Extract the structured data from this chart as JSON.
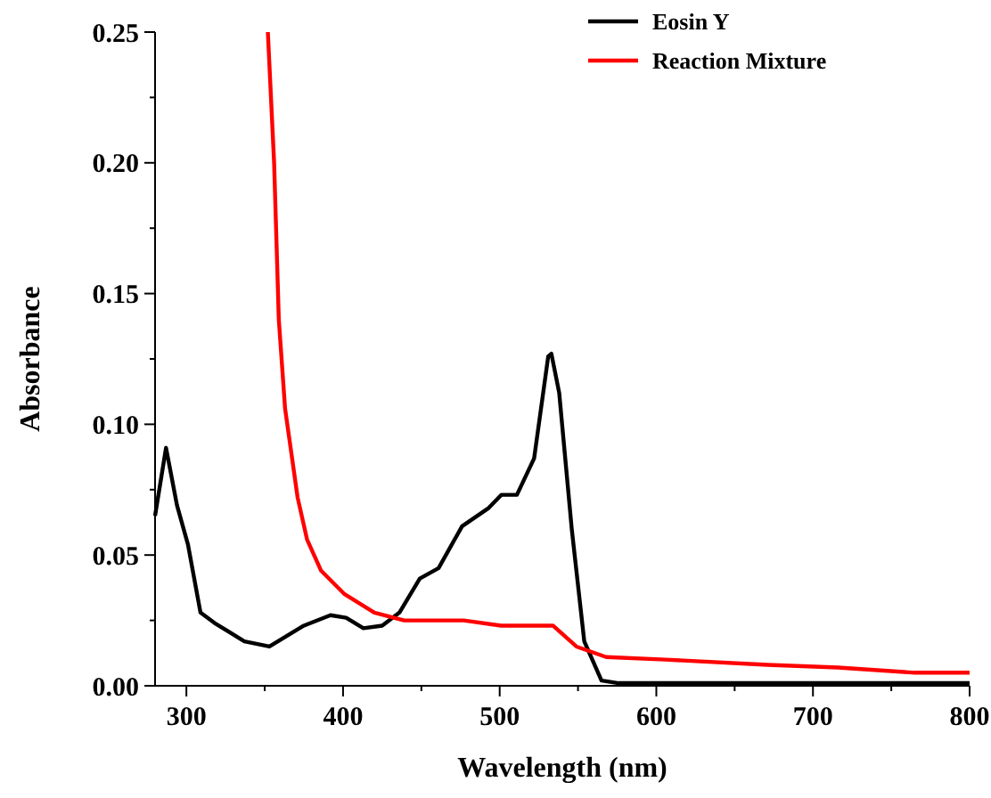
{
  "chart_data": {
    "type": "line",
    "xlabel": "Wavelength (nm)",
    "ylabel": "Absorbance",
    "xlim": [
      280,
      800
    ],
    "ylim": [
      0,
      0.25
    ],
    "xticks": [
      300,
      {
        "value": 350,
        "label": null
      },
      400,
      {
        "value": 450,
        "label": null
      },
      500,
      {
        "value": 550,
        "label": null
      },
      600,
      {
        "value": 650,
        "label": null
      },
      700,
      {
        "value": 750,
        "label": null
      },
      800
    ],
    "yticks": [
      "0.00",
      {
        "value": 0.025,
        "label": null
      },
      {
        "value": 0.05,
        "label": "0.05"
      },
      {
        "value": 0.075,
        "label": null
      },
      {
        "value": 0.1,
        "label": "0.10"
      },
      {
        "value": 0.125,
        "label": null
      },
      {
        "value": 0.15,
        "label": "0.15"
      },
      {
        "value": 0.175,
        "label": null
      },
      {
        "value": 0.2,
        "label": "0.20"
      },
      {
        "value": 0.225,
        "label": null
      },
      {
        "value": 0.25,
        "label": "0.25"
      }
    ],
    "legend": "top right",
    "grid": false,
    "marker": "none",
    "line_style": "solid",
    "series": [
      {
        "name": "Eosin Y",
        "color": "#000000",
        "x": [
          280,
          287,
          294,
          301,
          309,
          318,
          337,
          353,
          375,
          392,
          402,
          413,
          425,
          436,
          449,
          461,
          476,
          493,
          501,
          511,
          522,
          531,
          533,
          538,
          546,
          554,
          565,
          576,
          600,
          700,
          800
        ],
        "values": [
          0.065,
          0.091,
          0.069,
          0.054,
          0.028,
          0.024,
          0.017,
          0.015,
          0.023,
          0.027,
          0.026,
          0.022,
          0.023,
          0.028,
          0.041,
          0.045,
          0.061,
          0.068,
          0.073,
          0.073,
          0.087,
          0.126,
          0.127,
          0.112,
          0.06,
          0.017,
          0.002,
          0.001,
          0.001,
          0.001,
          0.001
        ]
      },
      {
        "name": "Reaction Mixture",
        "color": "#ff0000",
        "x": [
          352,
          356,
          359,
          363,
          371,
          377,
          386,
          401,
          420,
          439,
          477,
          501,
          534,
          549,
          568,
          606,
          671,
          716,
          765,
          800
        ],
        "values": [
          0.25,
          0.2,
          0.14,
          0.106,
          0.072,
          0.056,
          0.044,
          0.035,
          0.028,
          0.025,
          0.025,
          0.023,
          0.023,
          0.015,
          0.011,
          0.01,
          0.008,
          0.007,
          0.005,
          0.005
        ]
      }
    ]
  }
}
